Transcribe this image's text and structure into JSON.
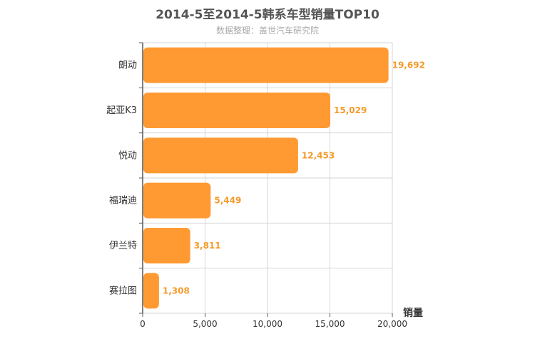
{
  "chart_data": {
    "type": "bar",
    "orientation": "horizontal",
    "title": "2014-5至2014-5韩系车型销量TOP10",
    "subtitle": "数据整理：盖世汽车研究院",
    "categories": [
      "朗动",
      "起亚K3",
      "悦动",
      "福瑞迪",
      "伊兰特",
      "赛拉图"
    ],
    "values": [
      19692,
      15029,
      12453,
      5449,
      3811,
      1308
    ],
    "value_labels": [
      "19,692",
      "15,029",
      "12,453",
      "5,449",
      "3,811",
      "1,308"
    ],
    "xlabel": "销量",
    "ylabel": "",
    "xlim": [
      0,
      20000
    ],
    "xticks": [
      0,
      5000,
      10000,
      15000,
      20000
    ],
    "xtick_labels": [
      "0",
      "5,000",
      "10,000",
      "15,000",
      "20,000"
    ],
    "grid": true,
    "bar_color": "#ff9a33",
    "value_label_color": "#f59a2a"
  }
}
